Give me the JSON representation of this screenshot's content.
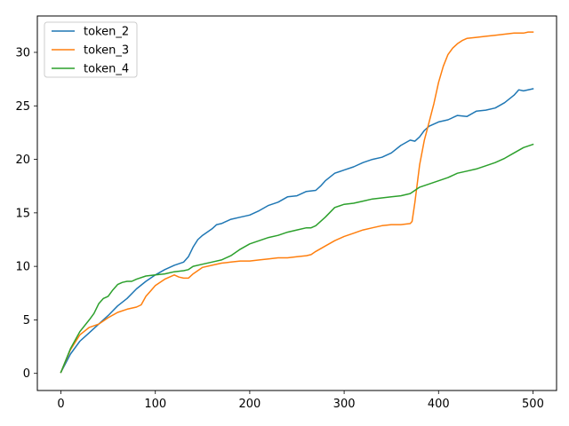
{
  "chart_data": {
    "type": "line",
    "title": "",
    "xlabel": "",
    "ylabel": "",
    "xlim": [
      -25,
      525
    ],
    "ylim": [
      -1.6,
      33.4
    ],
    "xticks": [
      0,
      100,
      200,
      300,
      400,
      500
    ],
    "yticks": [
      0,
      5,
      10,
      15,
      20,
      25,
      30
    ],
    "grid": false,
    "legend_position": "top-left",
    "series": [
      {
        "name": "token_2",
        "color": "#1f77b4",
        "x": [
          0,
          10,
          20,
          30,
          40,
          50,
          60,
          70,
          80,
          90,
          100,
          110,
          120,
          130,
          135,
          140,
          145,
          150,
          160,
          165,
          170,
          180,
          190,
          200,
          210,
          220,
          230,
          240,
          250,
          260,
          270,
          275,
          280,
          290,
          300,
          310,
          320,
          330,
          340,
          350,
          360,
          370,
          375,
          380,
          385,
          390,
          400,
          410,
          420,
          430,
          440,
          450,
          460,
          470,
          480,
          485,
          490,
          500
        ],
        "y": [
          0.1,
          1.8,
          3.0,
          3.8,
          4.6,
          5.4,
          6.3,
          7.0,
          7.9,
          8.6,
          9.2,
          9.7,
          10.1,
          10.4,
          10.9,
          11.8,
          12.5,
          12.9,
          13.5,
          13.9,
          14.0,
          14.4,
          14.6,
          14.8,
          15.2,
          15.7,
          16.0,
          16.5,
          16.6,
          17.0,
          17.1,
          17.5,
          18.0,
          18.7,
          19.0,
          19.3,
          19.7,
          20.0,
          20.2,
          20.6,
          21.3,
          21.8,
          21.7,
          22.1,
          22.7,
          23.1,
          23.5,
          23.7,
          24.1,
          24.0,
          24.5,
          24.6,
          24.8,
          25.3,
          26.0,
          26.5,
          26.4,
          26.6
        ]
      },
      {
        "name": "token_3",
        "color": "#ff7f0e",
        "x": [
          0,
          10,
          20,
          30,
          40,
          50,
          60,
          70,
          80,
          85,
          90,
          95,
          100,
          110,
          120,
          125,
          130,
          135,
          140,
          150,
          160,
          170,
          180,
          190,
          200,
          210,
          220,
          230,
          240,
          250,
          260,
          265,
          270,
          280,
          290,
          300,
          310,
          320,
          330,
          340,
          350,
          360,
          370,
          372,
          375,
          380,
          385,
          390,
          395,
          400,
          405,
          410,
          415,
          420,
          425,
          430,
          440,
          450,
          460,
          470,
          480,
          490,
          495,
          500
        ],
        "y": [
          0.1,
          2.2,
          3.6,
          4.3,
          4.6,
          5.2,
          5.7,
          6.0,
          6.2,
          6.4,
          7.2,
          7.7,
          8.2,
          8.8,
          9.2,
          9.0,
          8.9,
          8.9,
          9.3,
          9.9,
          10.1,
          10.3,
          10.4,
          10.5,
          10.5,
          10.6,
          10.7,
          10.8,
          10.8,
          10.9,
          11.0,
          11.1,
          11.4,
          11.9,
          12.4,
          12.8,
          13.1,
          13.4,
          13.6,
          13.8,
          13.9,
          13.9,
          14.0,
          14.2,
          16.0,
          19.5,
          21.8,
          23.5,
          25.2,
          27.2,
          28.7,
          29.8,
          30.4,
          30.8,
          31.1,
          31.3,
          31.4,
          31.5,
          31.6,
          31.7,
          31.8,
          31.8,
          31.9,
          31.9
        ]
      },
      {
        "name": "token_4",
        "color": "#2ca02c",
        "x": [
          0,
          10,
          20,
          30,
          35,
          40,
          45,
          50,
          55,
          60,
          65,
          70,
          75,
          80,
          90,
          100,
          110,
          120,
          130,
          135,
          140,
          150,
          160,
          170,
          180,
          190,
          200,
          210,
          220,
          230,
          240,
          250,
          260,
          265,
          270,
          280,
          290,
          300,
          310,
          320,
          330,
          340,
          350,
          360,
          370,
          380,
          390,
          400,
          410,
          420,
          430,
          440,
          450,
          460,
          470,
          480,
          490,
          500
        ],
        "y": [
          0.1,
          2.3,
          3.9,
          5.0,
          5.6,
          6.5,
          7.0,
          7.2,
          7.8,
          8.3,
          8.5,
          8.6,
          8.6,
          8.8,
          9.1,
          9.2,
          9.3,
          9.5,
          9.6,
          9.7,
          10.0,
          10.2,
          10.4,
          10.6,
          11.0,
          11.6,
          12.1,
          12.4,
          12.7,
          12.9,
          13.2,
          13.4,
          13.6,
          13.6,
          13.8,
          14.6,
          15.5,
          15.8,
          15.9,
          16.1,
          16.3,
          16.4,
          16.5,
          16.6,
          16.8,
          17.4,
          17.7,
          18.0,
          18.3,
          18.7,
          18.9,
          19.1,
          19.4,
          19.7,
          20.1,
          20.6,
          21.1,
          21.4
        ]
      }
    ]
  }
}
